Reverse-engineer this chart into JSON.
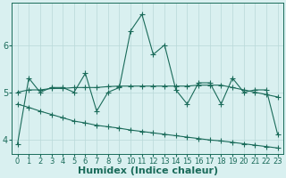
{
  "x": [
    0,
    1,
    2,
    3,
    4,
    5,
    6,
    7,
    8,
    9,
    10,
    11,
    12,
    13,
    14,
    15,
    16,
    17,
    18,
    19,
    20,
    21,
    22,
    23
  ],
  "y_main": [
    3.9,
    5.3,
    5.0,
    5.1,
    5.1,
    5.0,
    5.4,
    4.6,
    5.0,
    5.1,
    6.3,
    6.65,
    5.8,
    6.0,
    5.05,
    4.75,
    5.2,
    5.2,
    4.75,
    5.3,
    5.0,
    5.05,
    5.05,
    4.1
  ],
  "y_upper": [
    5.0,
    5.05,
    5.05,
    5.08,
    5.08,
    5.1,
    5.1,
    5.1,
    5.12,
    5.13,
    5.13,
    5.13,
    5.13,
    5.13,
    5.13,
    5.13,
    5.15,
    5.15,
    5.15,
    5.1,
    5.05,
    5.0,
    4.95,
    4.9
  ],
  "y_lower": [
    4.75,
    4.68,
    4.6,
    4.53,
    4.46,
    4.39,
    4.35,
    4.3,
    4.27,
    4.24,
    4.2,
    4.17,
    4.14,
    4.11,
    4.08,
    4.05,
    4.02,
    3.99,
    3.97,
    3.94,
    3.91,
    3.88,
    3.85,
    3.82
  ],
  "line_color": "#1a6b5a",
  "bg_color": "#d9f0f0",
  "grid_color": "#b8d8d8",
  "xlabel": "Humidex (Indice chaleur)",
  "ylim": [
    3.7,
    6.9
  ],
  "xlim": [
    -0.5,
    23.5
  ],
  "yticks": [
    4,
    5,
    6
  ],
  "xticks": [
    0,
    1,
    2,
    3,
    4,
    5,
    6,
    7,
    8,
    9,
    10,
    11,
    12,
    13,
    14,
    15,
    16,
    17,
    18,
    19,
    20,
    21,
    22,
    23
  ],
  "marker": "+",
  "markersize": 4,
  "linewidth": 0.8,
  "xlabel_fontsize": 8,
  "tick_fontsize": 6,
  "figsize": [
    3.2,
    2.0
  ],
  "dpi": 100
}
